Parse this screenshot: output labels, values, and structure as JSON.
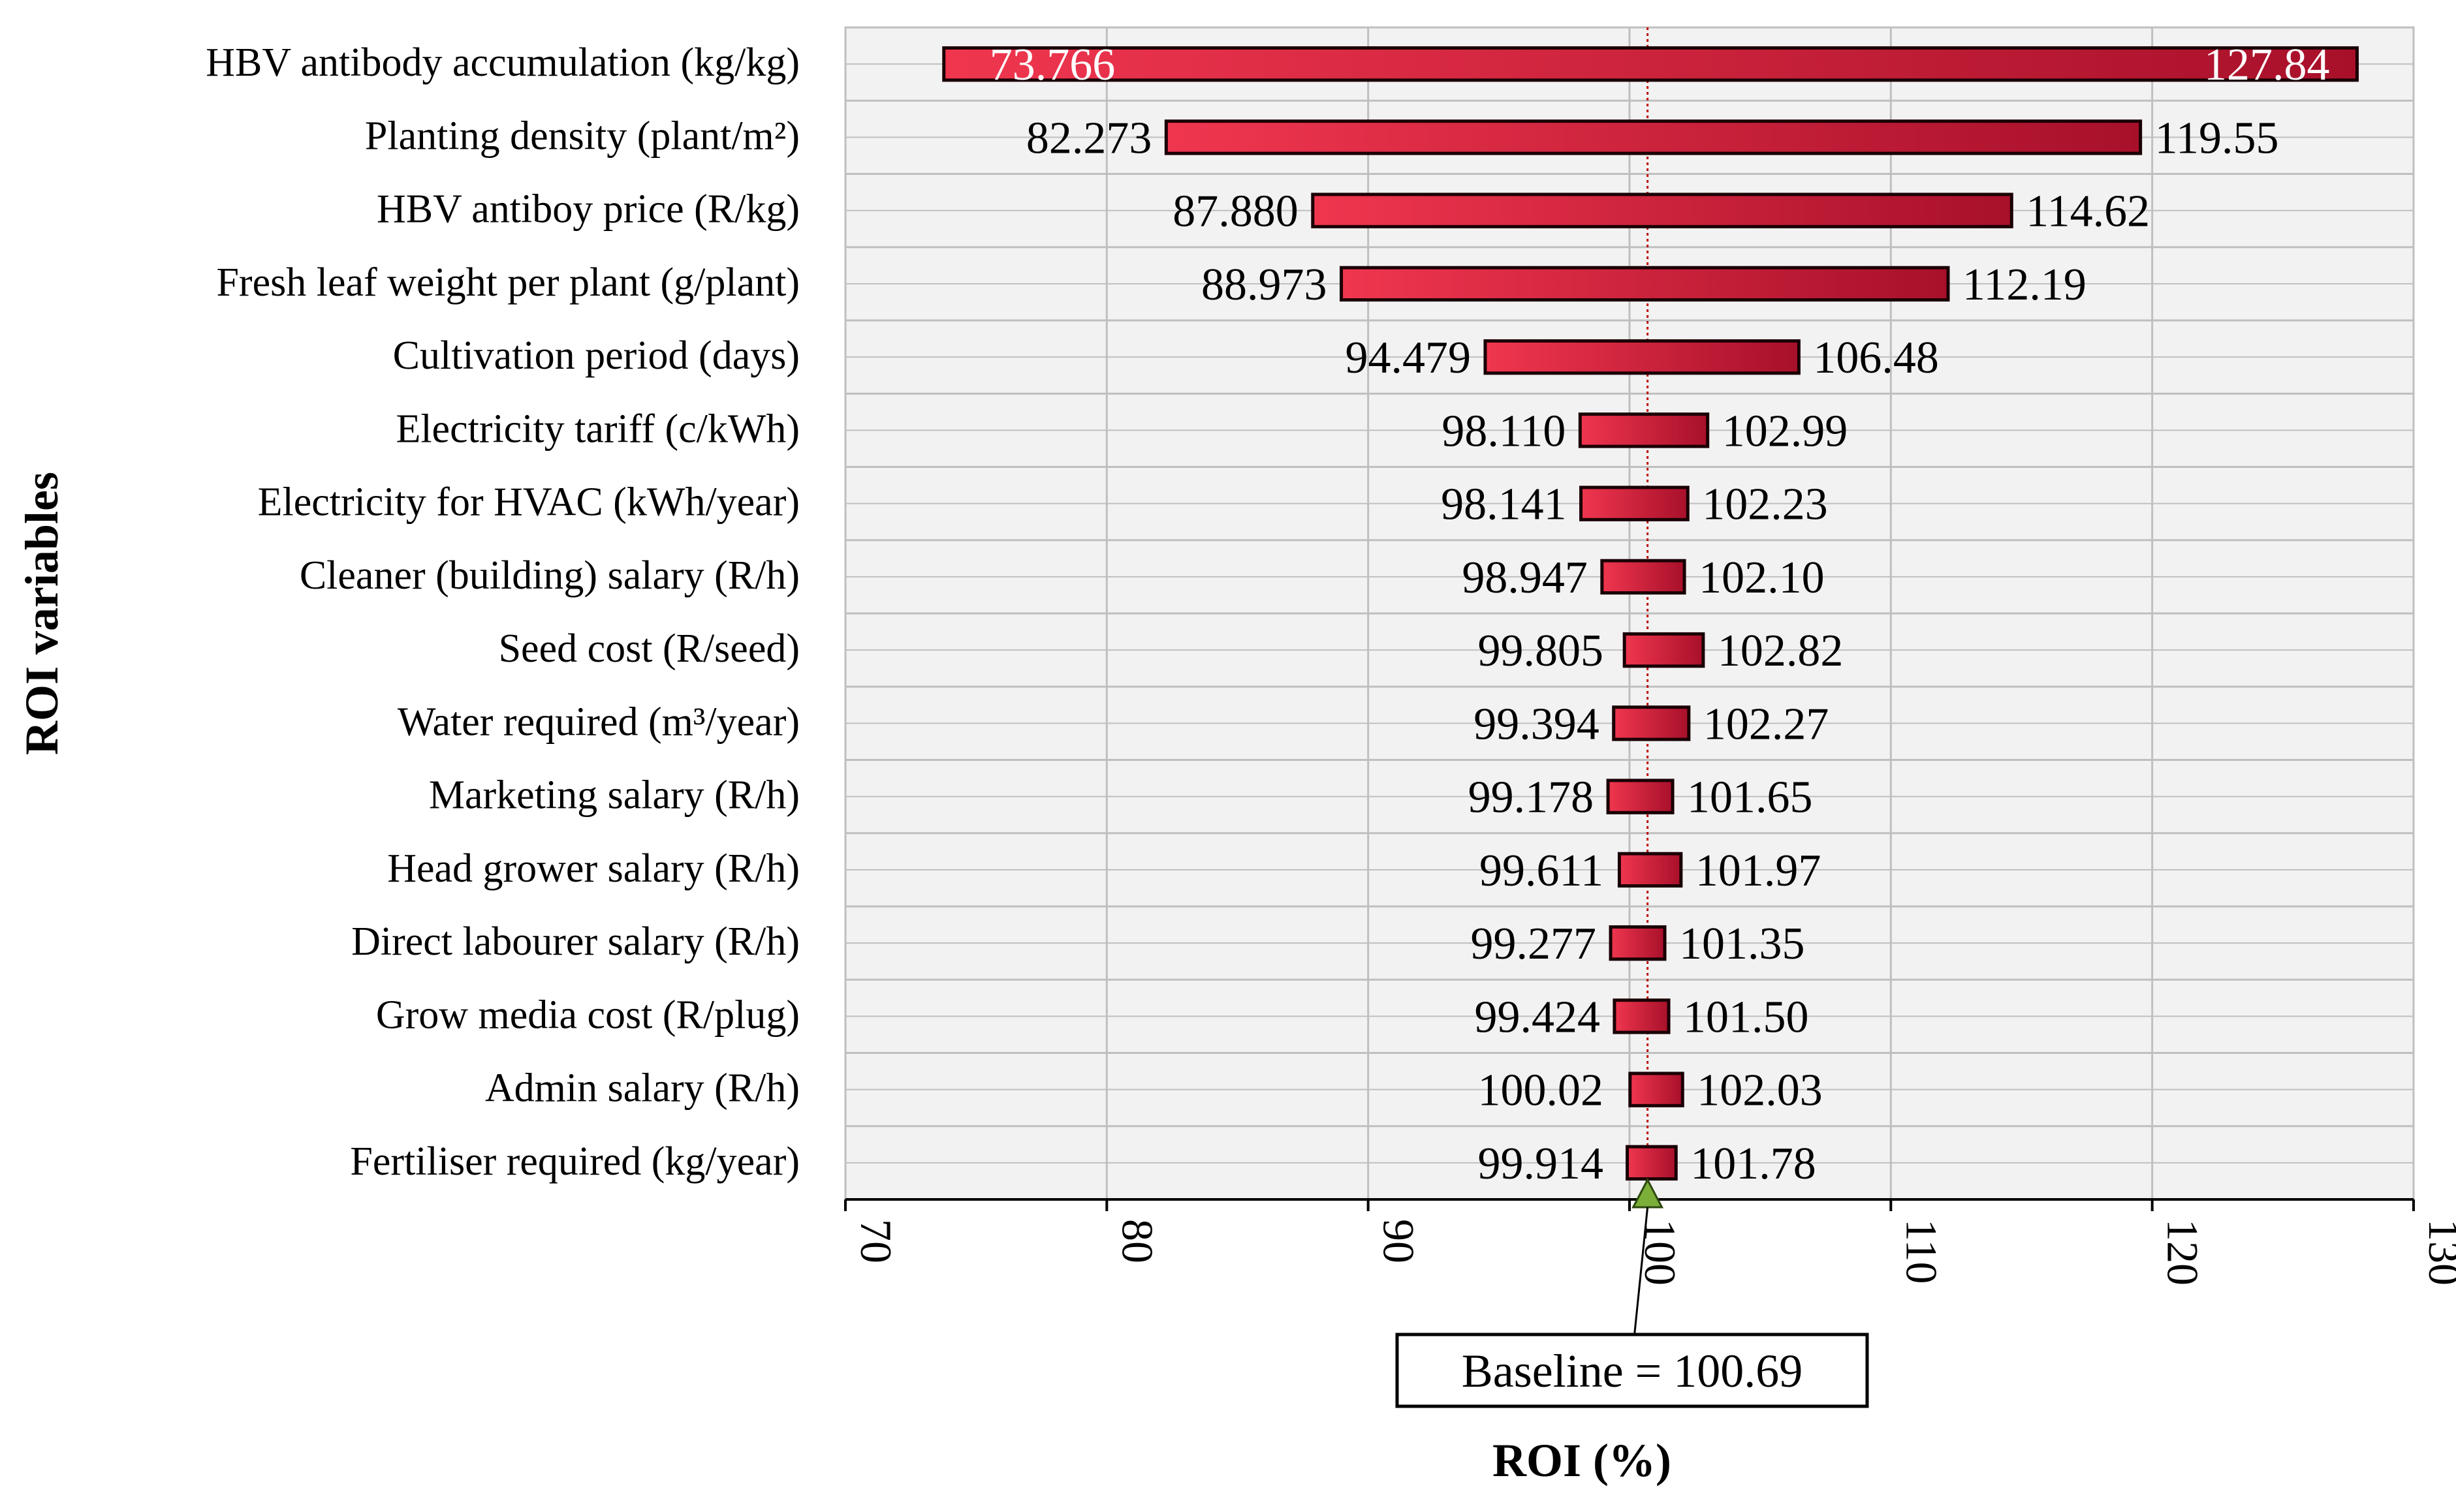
{
  "chart_data": {
    "type": "bar",
    "orientation": "horizontal",
    "chart_kind": "tornado",
    "xlabel": "ROI (%)",
    "ylabel": "ROI variables",
    "xlim": [
      70,
      130
    ],
    "xticks": [
      70,
      80,
      90,
      100,
      110,
      120,
      130
    ],
    "grid": true,
    "baseline": {
      "value": 100.69,
      "label": "Baseline = 100.69"
    },
    "categories": [
      "HBV antibody accumulation (kg/kg)",
      "Planting density (plant/m²)",
      "HBV antiboy price (R/kg)",
      "Fresh leaf weight per plant (g/plant)",
      "Cultivation period (days)",
      "Electricity tariff (c/kWh)",
      "Electricity for HVAC (kWh/year)",
      "Cleaner (building) salary (R/h)",
      "Seed cost (R/seed)",
      "Water required (m³/year)",
      "Marketing salary (R/h)",
      "Head grower salary (R/h)",
      "Direct labourer salary (R/h)",
      "Grow media cost (R/plug)",
      "Admin salary (R/h)",
      "Fertiliser required (kg/year)"
    ],
    "series": [
      {
        "name": "Low",
        "values": [
          73.766,
          82.273,
          87.88,
          88.973,
          94.479,
          98.11,
          98.141,
          98.947,
          99.805,
          99.394,
          99.178,
          99.611,
          99.277,
          99.424,
          100.02,
          99.914
        ]
      },
      {
        "name": "High",
        "values": [
          127.84,
          119.55,
          114.62,
          112.19,
          106.48,
          102.99,
          102.23,
          102.1,
          102.82,
          102.27,
          101.65,
          101.97,
          101.35,
          101.5,
          102.03,
          101.78
        ]
      }
    ],
    "low_labels": [
      "73.766",
      "82.273",
      "87.880",
      "88.973",
      "94.479",
      "98.110",
      "98.141",
      "98.947",
      "99.805",
      "99.394",
      "99.178",
      "99.611",
      "99.277",
      "99.424",
      "100.02",
      "99.914"
    ],
    "high_labels": [
      "127.84",
      "119.55",
      "114.62",
      "112.19",
      "106.48",
      "102.99",
      "102.23",
      "102.10",
      "102.82",
      "102.27",
      "101.65",
      "101.97",
      "101.35",
      "101.50",
      "102.03",
      "101.78"
    ],
    "colors": {
      "bar_light": "#f0364f",
      "bar_dark": "#a8102a",
      "bar_edge": "#1a0005",
      "plot_bg": "#f2f2f2",
      "grid": "#bfbfbf",
      "baseline_line": "#c00000",
      "marker": "#7cae3a"
    }
  }
}
